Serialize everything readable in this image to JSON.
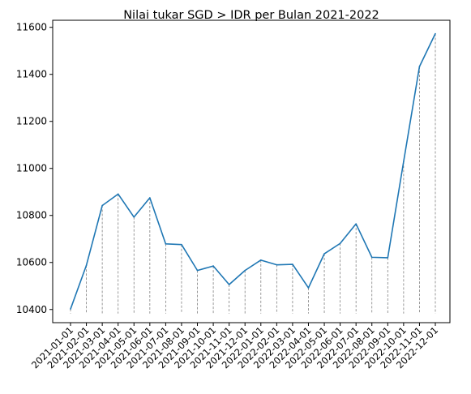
{
  "chart_data": {
    "type": "line",
    "title": "Nilai tukar SGD > IDR per Bulan 2021-2022",
    "xlabel": "",
    "ylabel": "",
    "categories": [
      "2021-01-01",
      "2021-02-01",
      "2021-03-01",
      "2021-04-01",
      "2021-05-01",
      "2021-06-01",
      "2021-07-01",
      "2021-08-01",
      "2021-09-01",
      "2021-10-01",
      "2021-11-01",
      "2021-12-01",
      "2022-01-01",
      "2022-02-01",
      "2022-03-01",
      "2022-04-01",
      "2022-05-01",
      "2022-06-01",
      "2022-07-01",
      "2022-08-01",
      "2022-09-01",
      "2022-10-01",
      "2022-11-01",
      "2022-12-01"
    ],
    "series": [
      {
        "color": "#1f77b4",
        "values": [
          10402,
          10588,
          10842,
          10891,
          10793,
          10875,
          10679,
          10676,
          10566,
          10585,
          10506,
          10566,
          10610,
          10590,
          10592,
          10492,
          10637,
          10681,
          10764,
          10622,
          10620,
          11029,
          11433,
          11573
        ]
      }
    ],
    "yticks": [
      10400,
      10600,
      10800,
      11000,
      11200,
      11400,
      11600
    ],
    "ylim": [
      10344,
      11630
    ],
    "grid": false,
    "legend": "none",
    "vertical_dashed_lines": true,
    "vertical_line_color": "#808080"
  }
}
